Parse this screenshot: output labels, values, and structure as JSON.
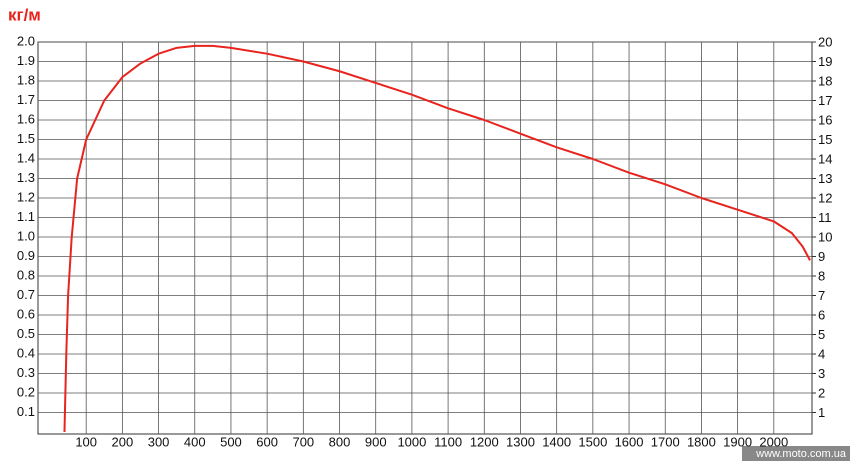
{
  "chart_data": {
    "type": "line",
    "title": "кг/м",
    "watermark": "www.moto.com.ua",
    "x": [
      40,
      45,
      50,
      60,
      75,
      100,
      150,
      200,
      250,
      300,
      350,
      400,
      450,
      500,
      600,
      700,
      800,
      900,
      1000,
      1100,
      1200,
      1300,
      1400,
      1500,
      1600,
      1700,
      1800,
      1900,
      2000,
      2050,
      2080,
      2100
    ],
    "series": [
      {
        "color": "#e8241e",
        "values": [
          0,
          0.4,
          0.7,
          1.0,
          1.3,
          1.5,
          1.7,
          1.82,
          1.89,
          1.94,
          1.97,
          1.98,
          1.98,
          1.97,
          1.94,
          1.9,
          1.85,
          1.79,
          1.73,
          1.66,
          1.6,
          1.53,
          1.46,
          1.4,
          1.33,
          1.27,
          1.2,
          1.14,
          1.08,
          1.02,
          0.95,
          0.88
        ]
      }
    ],
    "xlim": [
      0,
      2100
    ],
    "xticks": [
      100,
      200,
      300,
      400,
      500,
      600,
      700,
      800,
      900,
      1000,
      1100,
      1200,
      1300,
      1400,
      1500,
      1600,
      1700,
      1800,
      1900,
      2000
    ],
    "ylim": [
      0,
      2
    ],
    "yticks": [
      0.1,
      0.2,
      0.3,
      0.4,
      0.5,
      0.6,
      0.7,
      0.8,
      0.9,
      {
        "value": 1,
        "label": "1.0"
      },
      1.1,
      1.2,
      1.3,
      1.4,
      1.5,
      1.6,
      1.7,
      1.8,
      1.9,
      {
        "value": 2,
        "label": "2.0"
      }
    ],
    "y2lim": [
      0,
      20
    ],
    "y2ticks": [
      1,
      2,
      3,
      4,
      5,
      6,
      7,
      8,
      9,
      10,
      11,
      12,
      13,
      14,
      15,
      16,
      17,
      18,
      19,
      20
    ],
    "grid": true
  }
}
